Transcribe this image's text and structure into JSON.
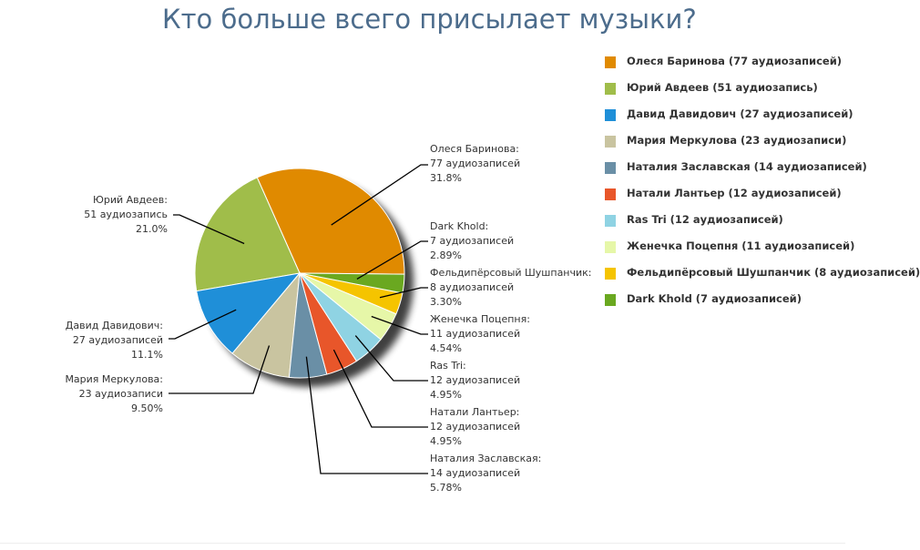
{
  "title": "Кто больше всего присылает музыки?",
  "chart_data": {
    "type": "pie",
    "title": "Кто больше всего присылает музыки?",
    "slices": [
      {
        "name": "Олеся Баринова",
        "value": 77,
        "unit": "аудиозаписей",
        "percent": "31.8%",
        "color": "#e08a00",
        "label": [
          "Олеся Баринова:",
          "77 аудиозаписей",
          "31.8%"
        ],
        "legend": "Олеся Баринова (77 аудиозаписей)"
      },
      {
        "name": "Юрий Авдеев",
        "value": 51,
        "unit": "аудиозапись",
        "percent": "21.0%",
        "color": "#a0bd4a",
        "label": [
          "Юрий Авдеев:",
          "51 аудиозапись",
          "21.0%"
        ],
        "legend": "Юрий Авдеев (51 аудиозапись)"
      },
      {
        "name": "Давид Давидович",
        "value": 27,
        "unit": "аудиозаписей",
        "percent": "11.1%",
        "color": "#1f8fd8",
        "label": [
          "Давид Давидович:",
          "27 аудиозаписей",
          "11.1%"
        ],
        "legend": "Давид Давидович (27 аудиозаписей)"
      },
      {
        "name": "Мария Меркулова",
        "value": 23,
        "unit": "аудиозаписи",
        "percent": "9.50%",
        "color": "#c9c4a0",
        "label": [
          "Мария Меркулова:",
          "23 аудиозаписи",
          "9.50%"
        ],
        "legend": "Мария Меркулова (23 аудиозаписи)"
      },
      {
        "name": "Наталия Заславская",
        "value": 14,
        "unit": "аудиозаписей",
        "percent": "5.78%",
        "color": "#6a8fa6",
        "label": [
          "Наталия Заславская:",
          "14 аудиозаписей",
          "5.78%"
        ],
        "legend": "Наталия Заславская (14 аудиозаписей)"
      },
      {
        "name": "Натали Лантьер",
        "value": 12,
        "unit": "аудиозаписей",
        "percent": "4.95%",
        "color": "#e8562a",
        "label": [
          "Натали Лантьер:",
          "12 аудиозаписей",
          "4.95%"
        ],
        "legend": "Натали Лантьер (12 аудиозаписей)"
      },
      {
        "name": "Ras Tri",
        "value": 12,
        "unit": "аудиозаписей",
        "percent": "4.95%",
        "color": "#8fd3e3",
        "label": [
          "Ras Tri:",
          "12 аудиозаписей",
          "4.95%"
        ],
        "legend": "Ras Tri (12 аудиозаписей)"
      },
      {
        "name": "Женечка Поцепня",
        "value": 11,
        "unit": "аудиозаписей",
        "percent": "4.54%",
        "color": "#e6f7a8",
        "label": [
          "Женечка Поцепня:",
          "11 аудиозаписей",
          "4.54%"
        ],
        "legend": "Женечка Поцепня (11 аудиозаписей)"
      },
      {
        "name": "Фельдипёрсовый Шушпанчик",
        "value": 8,
        "unit": "аудиозаписей",
        "percent": "3.30%",
        "color": "#f5c400",
        "label": [
          "Фельдипёрсовый Шушпанчик:",
          "8 аудиозаписей",
          "3.30%"
        ],
        "legend": "Фельдипёрсовый Шушпанчик (8 аудиозаписей)"
      },
      {
        "name": "Dark Khold",
        "value": 7,
        "unit": "аудиозаписей",
        "percent": "2.89%",
        "color": "#6aa820",
        "label": [
          "Dark Khold:",
          "7 аудиозаписей",
          "2.89%"
        ],
        "legend": "Dark Khold (7 аудиозаписей)"
      }
    ],
    "legend_position": "right"
  }
}
